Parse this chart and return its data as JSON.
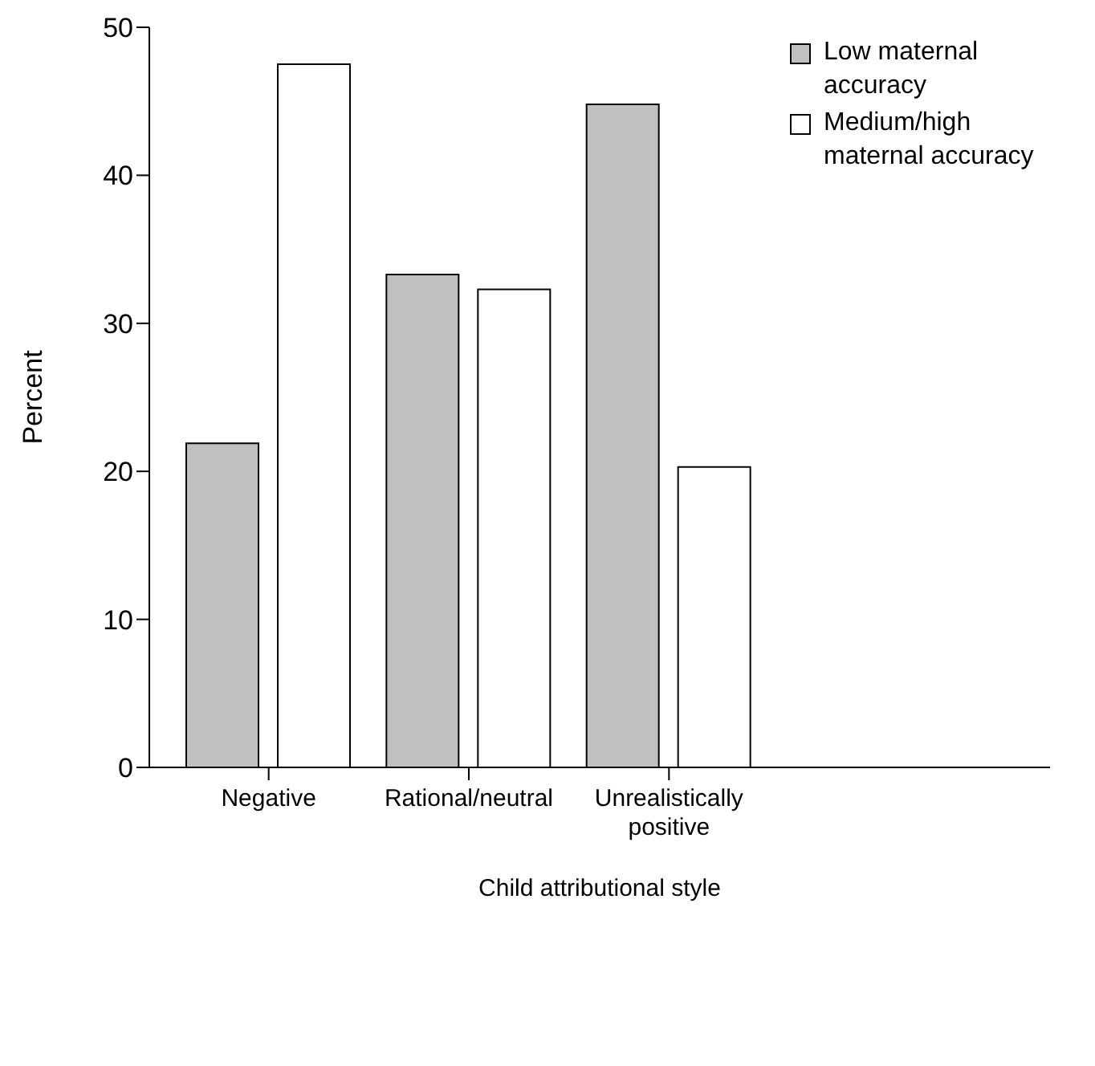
{
  "chart_data": {
    "type": "bar",
    "xlabel": "Child attributional style",
    "ylabel": "Percent",
    "categories": [
      "Negative",
      "Rational/neutral",
      "Unrealistically positive"
    ],
    "series": [
      {
        "name": "Low maternal accuracy",
        "color": "#c0c0c0",
        "values": [
          21.9,
          33.3,
          44.8
        ]
      },
      {
        "name": "Medium/high maternal accuracy",
        "color": "#ffffff",
        "values": [
          47.5,
          32.3,
          20.3
        ]
      }
    ],
    "ylim": [
      0,
      50
    ],
    "yticks": [
      0,
      10,
      20,
      30,
      40,
      50
    ],
    "grid": false,
    "legend": "top right"
  }
}
